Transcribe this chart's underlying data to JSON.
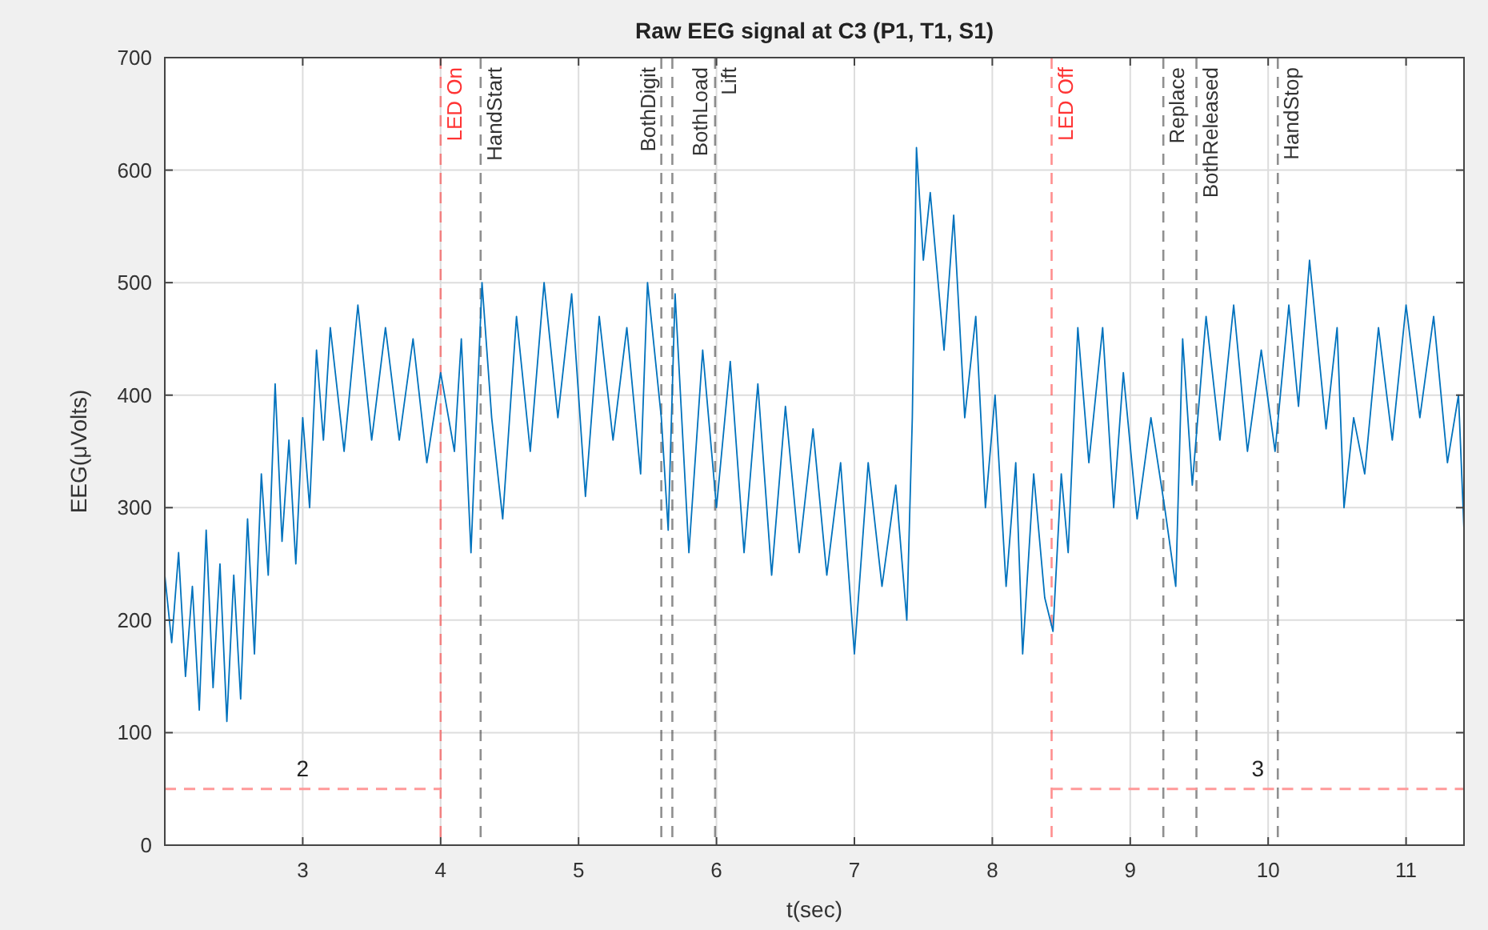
{
  "chart_data": {
    "type": "line",
    "title": "Raw EEG signal at C3 (P1, T1, S1)",
    "xlabel": "t(sec)",
    "ylabel": "EEG(μVolts)",
    "xlim": [
      2,
      11.42
    ],
    "xticks": [
      3,
      4,
      5,
      6,
      7,
      8,
      9,
      10,
      11
    ],
    "ylim": [
      0,
      700
    ],
    "yticks": [
      0,
      100,
      200,
      300,
      400,
      500,
      600,
      700
    ],
    "grid": true,
    "marker": "none",
    "series": [
      {
        "color": "#0072bd",
        "line_style": "solid",
        "x": [
          2.0,
          2.05,
          2.1,
          2.15,
          2.2,
          2.25,
          2.3,
          2.35,
          2.4,
          2.45,
          2.5,
          2.55,
          2.6,
          2.65,
          2.7,
          2.75,
          2.8,
          2.85,
          2.9,
          2.95,
          3.0,
          3.05,
          3.1,
          3.15,
          3.2,
          3.3,
          3.4,
          3.5,
          3.6,
          3.7,
          3.8,
          3.9,
          4.0,
          4.1,
          4.15,
          4.22,
          4.3,
          4.37,
          4.45,
          4.55,
          4.65,
          4.75,
          4.85,
          4.95,
          5.05,
          5.15,
          5.25,
          5.35,
          5.45,
          5.5,
          5.6,
          5.65,
          5.7,
          5.8,
          5.9,
          6.0,
          6.1,
          6.2,
          6.3,
          6.4,
          6.5,
          6.6,
          6.7,
          6.8,
          6.9,
          7.0,
          7.1,
          7.2,
          7.3,
          7.38,
          7.42,
          7.45,
          7.5,
          7.55,
          7.65,
          7.72,
          7.8,
          7.88,
          7.95,
          8.02,
          8.1,
          8.17,
          8.22,
          8.3,
          8.38,
          8.44,
          8.5,
          8.55,
          8.62,
          8.7,
          8.8,
          8.88,
          8.95,
          9.05,
          9.15,
          9.25,
          9.33,
          9.38,
          9.45,
          9.55,
          9.65,
          9.75,
          9.85,
          9.95,
          10.05,
          10.15,
          10.22,
          10.3,
          10.42,
          10.5,
          10.55,
          10.62,
          10.7,
          10.8,
          10.9,
          11.0,
          11.1,
          11.2,
          11.3,
          11.38,
          11.42
        ],
        "values": [
          240,
          180,
          260,
          150,
          230,
          120,
          280,
          140,
          250,
          110,
          240,
          130,
          290,
          170,
          330,
          240,
          410,
          270,
          360,
          250,
          380,
          300,
          440,
          360,
          460,
          350,
          480,
          360,
          460,
          360,
          450,
          340,
          420,
          350,
          450,
          260,
          500,
          380,
          290,
          470,
          350,
          500,
          380,
          490,
          310,
          470,
          360,
          460,
          330,
          500,
          380,
          280,
          490,
          260,
          440,
          300,
          430,
          260,
          410,
          240,
          390,
          260,
          370,
          240,
          340,
          170,
          340,
          230,
          320,
          200,
          380,
          620,
          520,
          580,
          440,
          560,
          380,
          470,
          300,
          400,
          230,
          340,
          170,
          330,
          220,
          190,
          330,
          260,
          460,
          340,
          460,
          300,
          420,
          290,
          380,
          300,
          230,
          450,
          320,
          470,
          360,
          480,
          350,
          440,
          350,
          480,
          390,
          520,
          370,
          460,
          300,
          380,
          330,
          460,
          360,
          480,
          380,
          470,
          340,
          400,
          280
        ]
      },
      {
        "name": "2",
        "color": "#ff9999",
        "line_style": "dashed",
        "x": [
          2.0,
          4.0
        ],
        "values": [
          50,
          50
        ]
      },
      {
        "name": "3",
        "color": "#ff9999",
        "line_style": "dashed",
        "x": [
          8.43,
          11.42
        ],
        "values": [
          50,
          50
        ]
      }
    ],
    "ref_lines": [
      {
        "axis": "x",
        "value": 4.0,
        "label": "LED On",
        "color": "#ff3333"
      },
      {
        "axis": "x",
        "value": 4.29,
        "label": "HandStart",
        "color": "#333333"
      },
      {
        "axis": "x",
        "value": 5.6,
        "label": "BothDigit",
        "color": "#333333"
      },
      {
        "axis": "x",
        "value": 5.68,
        "label": "BothLoad",
        "color": "#333333"
      },
      {
        "axis": "x",
        "value": 5.99,
        "label": "Lift",
        "color": "#333333"
      },
      {
        "axis": "x",
        "value": 8.43,
        "label": "LED Off",
        "color": "#ff3333"
      },
      {
        "axis": "x",
        "value": 9.24,
        "label": "Replace",
        "color": "#333333"
      },
      {
        "axis": "x",
        "value": 9.48,
        "label": "BothReleased",
        "color": "#333333"
      },
      {
        "axis": "x",
        "value": 10.07,
        "label": "HandStop",
        "color": "#333333"
      }
    ]
  }
}
